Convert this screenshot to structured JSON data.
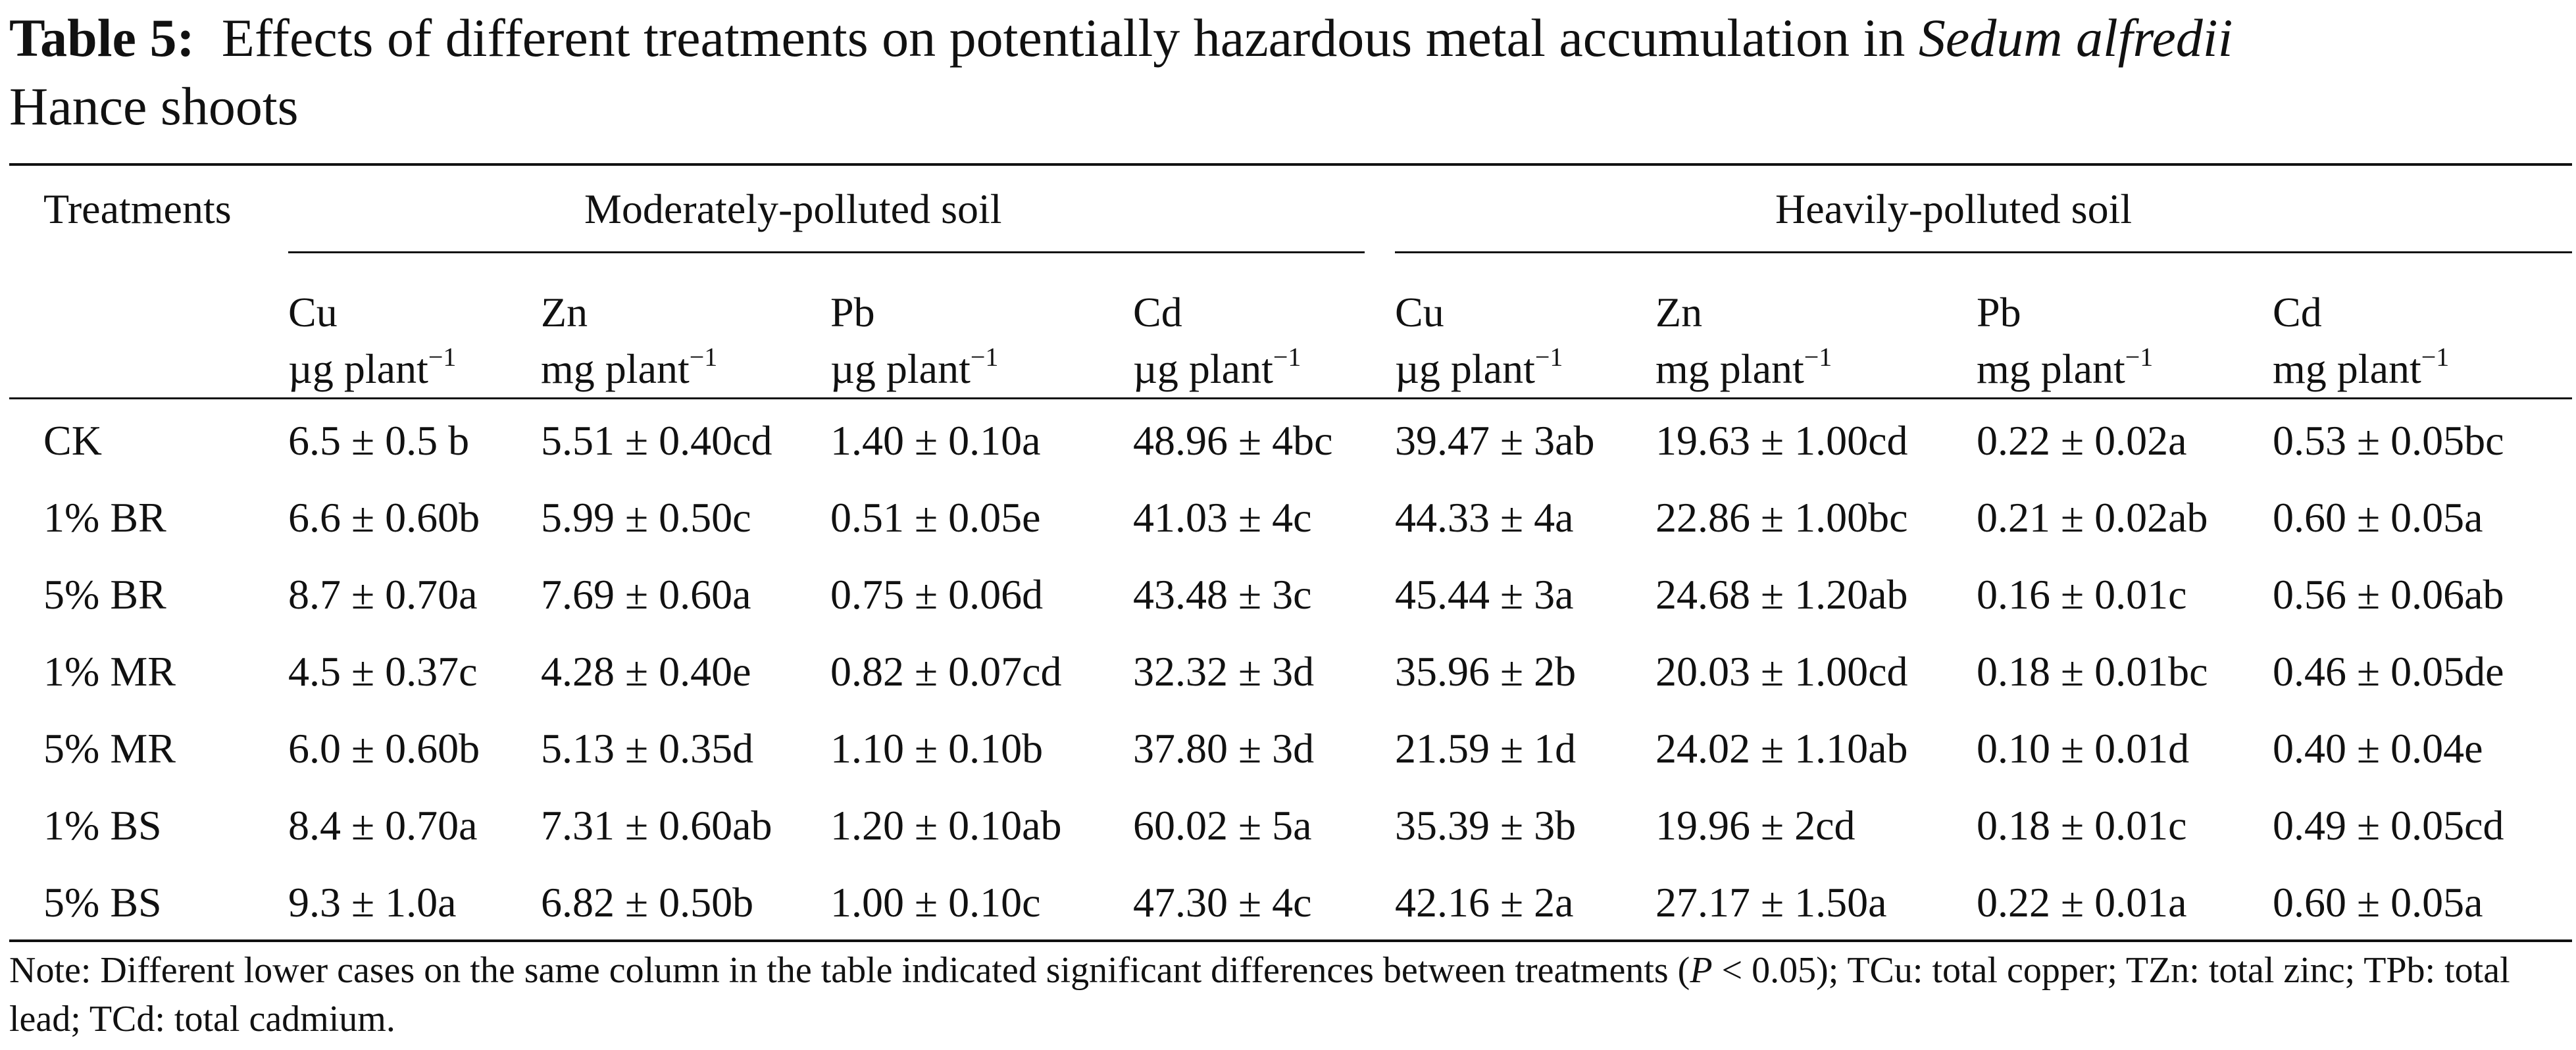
{
  "caption": {
    "label": "Table 5:",
    "text_before_italic": "Effects of different treatments on potentially hazardous metal accumulation in",
    "italic": "Sedum alfredii",
    "text_after_italic": "Hance shoots"
  },
  "header": {
    "treatments": "Treatments",
    "group_moderate": "Moderately-polluted soil",
    "group_heavy": "Heavily-polluted soil",
    "columns": [
      {
        "element": "Cu",
        "unit": "µg plant",
        "exp": "−1"
      },
      {
        "element": "Zn",
        "unit": "mg plant",
        "exp": "−1"
      },
      {
        "element": "Pb",
        "unit": "µg plant",
        "exp": "−1"
      },
      {
        "element": "Cd",
        "unit": "µg plant",
        "exp": "−1"
      },
      {
        "element": "Cu",
        "unit": "µg plant",
        "exp": "−1"
      },
      {
        "element": "Zn",
        "unit": "mg plant",
        "exp": "−1"
      },
      {
        "element": "Pb",
        "unit": "mg plant",
        "exp": "−1"
      },
      {
        "element": "Cd",
        "unit": "mg plant",
        "exp": "−1"
      }
    ]
  },
  "rows": [
    {
      "treatment": "CK",
      "values": [
        "6.5 ± 0.5 b",
        "5.51 ± 0.40cd",
        "1.40 ± 0.10a",
        "48.96 ± 4bc",
        "39.47 ± 3ab",
        "19.63 ± 1.00cd",
        "0.22 ± 0.02a",
        "0.53 ± 0.05bc"
      ]
    },
    {
      "treatment": "1% BR",
      "values": [
        "6.6 ± 0.60b",
        "5.99 ± 0.50c",
        "0.51 ± 0.05e",
        "41.03 ± 4c",
        "44.33 ± 4a",
        "22.86 ± 1.00bc",
        "0.21 ± 0.02ab",
        "0.60 ± 0.05a"
      ]
    },
    {
      "treatment": "5% BR",
      "values": [
        "8.7 ± 0.70a",
        "7.69 ± 0.60a",
        "0.75 ± 0.06d",
        "43.48 ± 3c",
        "45.44 ± 3a",
        "24.68 ± 1.20ab",
        "0.16 ± 0.01c",
        "0.56 ± 0.06ab"
      ]
    },
    {
      "treatment": "1% MR",
      "values": [
        "4.5 ± 0.37c",
        "4.28 ± 0.40e",
        "0.82 ± 0.07cd",
        "32.32 ± 3d",
        "35.96 ± 2b",
        "20.03 ± 1.00cd",
        "0.18 ± 0.01bc",
        "0.46 ± 0.05de"
      ]
    },
    {
      "treatment": "5% MR",
      "values": [
        "6.0 ± 0.60b",
        "5.13 ± 0.35d",
        "1.10 ± 0.10b",
        "37.80 ± 3d",
        "21.59 ± 1d",
        "24.02 ± 1.10ab",
        "0.10 ± 0.01d",
        "0.40 ± 0.04e"
      ]
    },
    {
      "treatment": "1% BS",
      "values": [
        "8.4 ± 0.70a",
        "7.31 ± 0.60ab",
        "1.20 ± 0.10ab",
        "60.02 ± 5a",
        "35.39 ± 3b",
        "19.96 ± 2cd",
        "0.18 ± 0.01c",
        "0.49 ± 0.05cd"
      ]
    },
    {
      "treatment": "5% BS",
      "values": [
        "9.3 ± 1.0a",
        "6.82 ± 0.50b",
        "1.00 ± 0.10c",
        "47.30 ± 4c",
        "42.16 ± 2a",
        "27.17 ± 1.50a",
        "0.22 ± 0.01a",
        "0.60 ± 0.05a"
      ]
    }
  ],
  "note": {
    "before_italic": "Note: Different lower cases on the same column in the table indicated significant differences between treatments (",
    "italic": "P",
    "after_italic": " < 0.05); TCu: total copper; TZn: total zinc; TPb: total lead; TCd: total cadmium."
  }
}
